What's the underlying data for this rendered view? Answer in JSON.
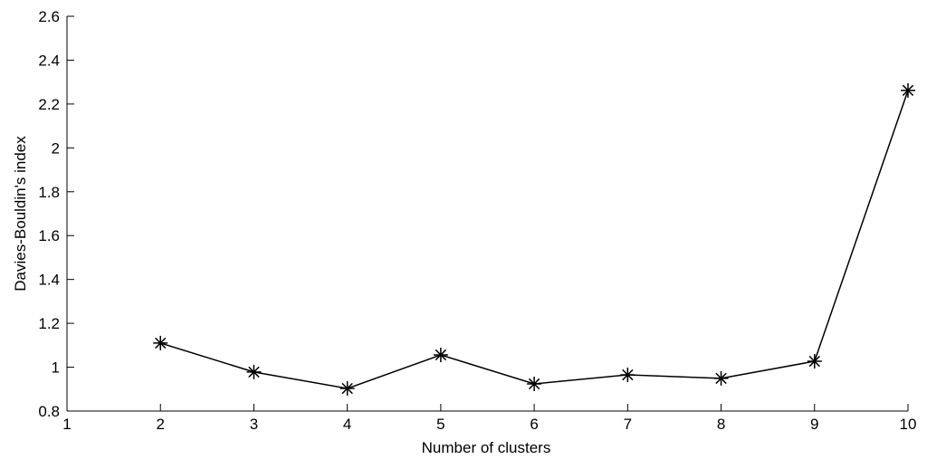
{
  "chart_data": {
    "type": "line",
    "xlabel": "Number of clusters",
    "ylabel": "Davies-Bouldin's index",
    "x": [
      2,
      3,
      4,
      5,
      6,
      7,
      8,
      9,
      10
    ],
    "series": [
      {
        "color": "#000000",
        "marker": "asterisk",
        "values": [
          1.11,
          0.978,
          0.903,
          1.056,
          0.924,
          0.965,
          0.949,
          1.027,
          2.262
        ]
      }
    ],
    "xlim": [
      1,
      10
    ],
    "xticks": [
      1,
      2,
      3,
      4,
      5,
      6,
      7,
      8,
      9,
      10
    ],
    "ylim": [
      0.8,
      2.6
    ],
    "yticks": [
      0.8,
      1,
      1.2,
      1.4,
      1.6,
      1.8,
      2,
      2.2,
      2.4,
      2.6
    ],
    "grid": false
  }
}
